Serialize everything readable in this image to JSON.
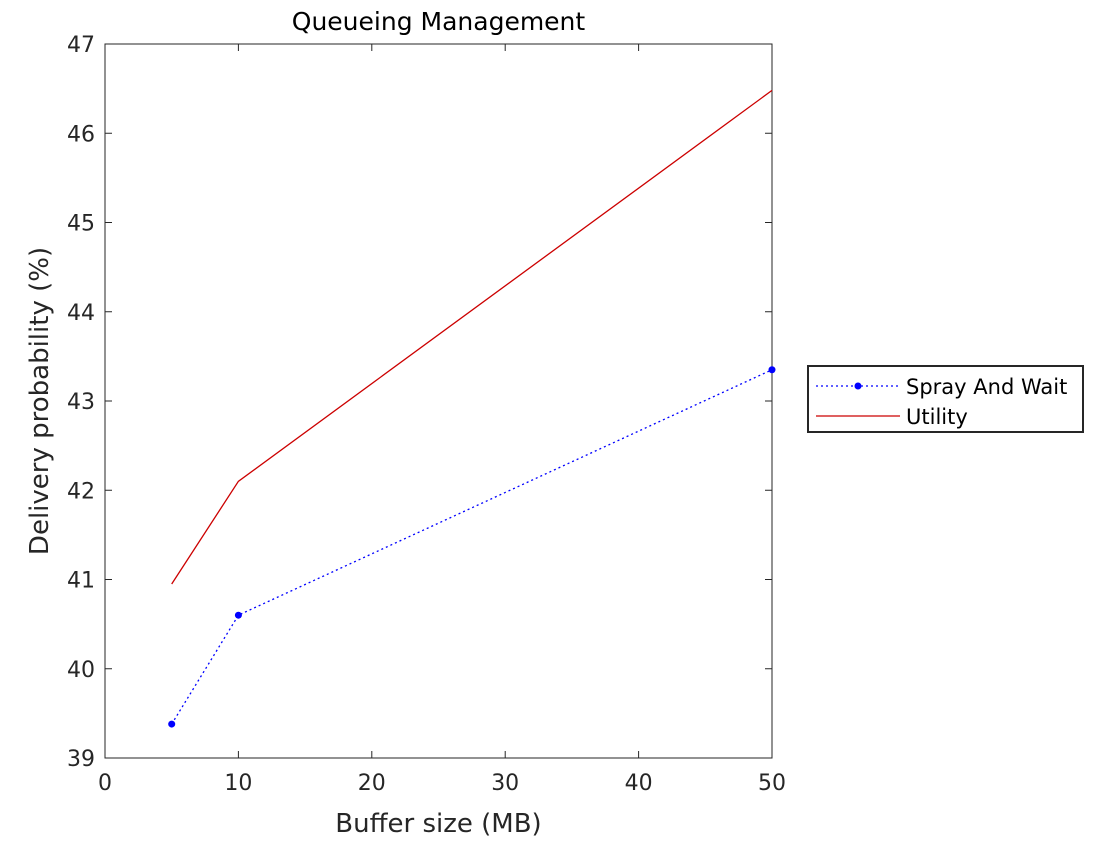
{
  "chart_data": {
    "type": "line",
    "title": "Queueing Management",
    "xlabel": "Buffer size (MB)",
    "ylabel": "Delivery probability (%)",
    "xlim": [
      0,
      50
    ],
    "ylim": [
      39,
      47
    ],
    "xticks": [
      0,
      10,
      20,
      30,
      40,
      50
    ],
    "yticks": [
      39,
      40,
      41,
      42,
      43,
      44,
      45,
      46,
      47
    ],
    "grid": false,
    "legend_position": "outside-right",
    "series": [
      {
        "name": "Spray And Wait",
        "color": "#0000ff",
        "line_style": "dotted",
        "marker": "dot",
        "x": [
          5,
          10,
          50
        ],
        "y": [
          39.38,
          40.6,
          43.35
        ]
      },
      {
        "name": "Utility",
        "color": "#cc0000",
        "line_style": "solid",
        "marker": "none",
        "x": [
          5,
          10,
          50
        ],
        "y": [
          40.95,
          42.1,
          46.48
        ]
      }
    ]
  }
}
